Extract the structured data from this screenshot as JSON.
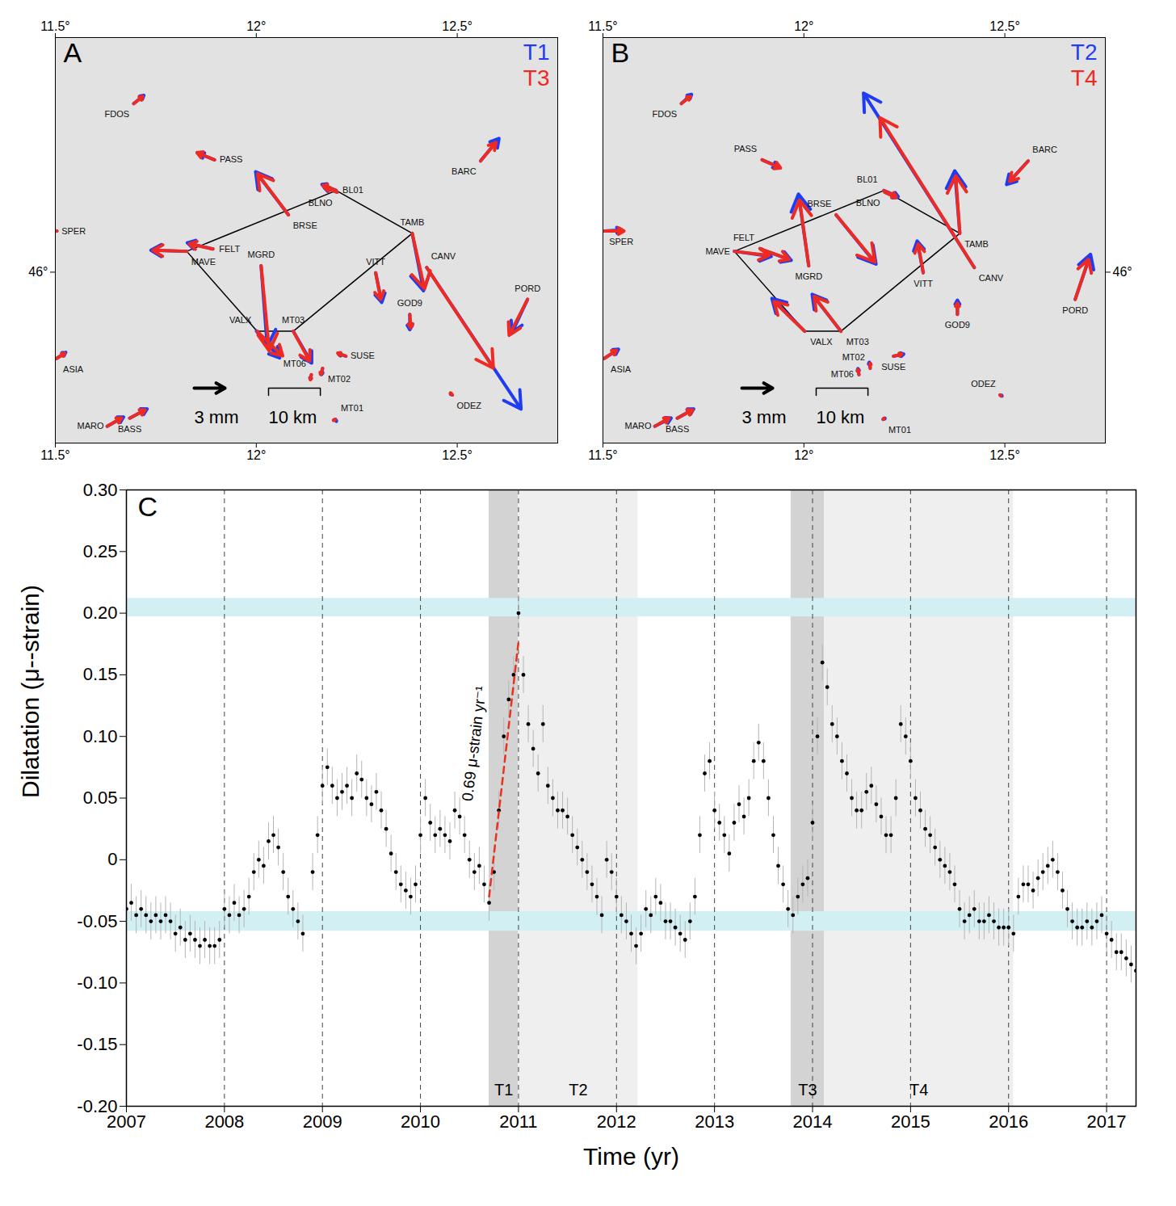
{
  "chart_data": [
    {
      "type": "map",
      "panel_label": "A",
      "legend": "top-right",
      "xlim": [
        11.5,
        12.75
      ],
      "ylim": [
        45.705,
        46.405
      ],
      "xticks": [
        {
          "value": 11.5,
          "label": "11.5°"
        },
        {
          "value": 12,
          "label": "12°"
        },
        {
          "value": 12.5,
          "label": "12.5°"
        }
      ],
      "yticks": [
        {
          "value": 46,
          "label": "46°"
        }
      ],
      "stations": [
        "FDOS",
        "PASS",
        "SPER",
        "BRSE",
        "BL01",
        "BLNO",
        "BARC",
        "MAVE",
        "FELT",
        "TAMB",
        "CANV",
        "VITT",
        "MGRD",
        "VALX",
        "MT03",
        "GOD9",
        "PORD",
        "SUSE",
        "MT06",
        "MT02",
        "MT01",
        "ODEZ",
        "ASIA",
        "BASS",
        "MARO"
      ],
      "lon": [
        11.695,
        11.896,
        11.504,
        12.08,
        12.199,
        12.201,
        12.558,
        11.827,
        11.892,
        12.388,
        12.424,
        12.297,
        12.012,
        12.002,
        12.092,
        12.382,
        12.675,
        12.223,
        12.137,
        12.165,
        12.197,
        12.488,
        11.503,
        11.685,
        11.629
      ],
      "lat": [
        46.291,
        46.194,
        46.071,
        46.099,
        46.141,
        46.138,
        46.192,
        46.036,
        46.04,
        46.067,
        46.008,
        45.999,
        46.011,
        45.898,
        45.898,
        45.927,
        45.953,
        45.855,
        45.823,
        45.834,
        45.746,
        45.788,
        45.851,
        45.748,
        45.734
      ],
      "network": [
        "MAVE",
        "BL01",
        "TAMB",
        "MT03",
        "VALX"
      ],
      "series": [
        {
          "name": "T1",
          "color": "#1f3cf2",
          "east": [
            1.0,
            -1.5,
            -0.2,
            -3.2,
            -1.4,
            -1.2,
            1.8,
            -3.5,
            -2.5,
            1.1,
            9.2,
            0.6,
            0.6,
            2.2,
            1.8,
            0.0,
            -1.5,
            -0.7,
            -0.1,
            -0.1,
            0.1,
            -0.2,
            0.9,
            1.7,
            1.6
          ],
          "north": [
            0.8,
            0.6,
            0.0,
            4.2,
            0.6,
            0.4,
            2.2,
            0.1,
            0.6,
            -5.6,
            -13.8,
            -2.9,
            -7.9,
            -2.6,
            -3.1,
            -1.5,
            -3.2,
            0.2,
            -0.4,
            -0.6,
            -0.2,
            0.1,
            0.6,
            0.9,
            0.9
          ]
        },
        {
          "name": "T3",
          "color": "#ee2a22",
          "east": [
            0.9,
            -1.7,
            -0.4,
            -3.0,
            -1.3,
            -1.1,
            1.5,
            -3.3,
            -2.3,
            1.2,
            6.5,
            0.5,
            0.8,
            2.5,
            1.6,
            0.1,
            -1.8,
            -0.8,
            -0.1,
            -0.2,
            -0.2,
            -0.2,
            0.8,
            1.5,
            1.4
          ],
          "north": [
            0.7,
            0.7,
            0.0,
            4.0,
            0.5,
            0.4,
            1.8,
            0.1,
            0.5,
            -5.4,
            -9.8,
            -2.6,
            -8.3,
            -2.4,
            -2.9,
            -1.3,
            -3.5,
            0.3,
            -0.5,
            -0.6,
            -0.1,
            0.2,
            0.5,
            0.8,
            0.8
          ]
        }
      ],
      "scale_arrow": {
        "value": 3,
        "label": "3 mm"
      },
      "scale_bar": {
        "value": 10,
        "label": "10 km"
      }
    },
    {
      "type": "map",
      "panel_label": "B",
      "legend": "top-right",
      "xlim": [
        11.5,
        12.75
      ],
      "ylim": [
        45.705,
        46.405
      ],
      "xticks": [
        {
          "value": 11.5,
          "label": "11.5°"
        },
        {
          "value": 12,
          "label": "12°"
        },
        {
          "value": 12.5,
          "label": "12.5°"
        }
      ],
      "yticks": [
        {
          "value": 46,
          "label": "46°"
        }
      ],
      "stations": [
        "FDOS",
        "PASS",
        "SPER",
        "BRSE",
        "BL01",
        "BLNO",
        "BARC",
        "MAVE",
        "FELT",
        "TAMB",
        "CANV",
        "VITT",
        "MGRD",
        "VALX",
        "MT03",
        "GOD9",
        "PORD",
        "SUSE",
        "MT06",
        "MT02",
        "MT01",
        "ODEZ",
        "ASIA",
        "BASS",
        "MARO"
      ],
      "lon": [
        11.695,
        11.896,
        11.504,
        12.08,
        12.199,
        12.201,
        12.558,
        11.827,
        11.892,
        12.388,
        12.424,
        12.297,
        12.012,
        12.002,
        12.092,
        12.382,
        12.675,
        12.223,
        12.137,
        12.165,
        12.197,
        12.488,
        11.503,
        11.685,
        11.629
      ],
      "lat": [
        46.291,
        46.194,
        46.071,
        46.099,
        46.141,
        46.138,
        46.192,
        46.036,
        46.04,
        46.067,
        46.008,
        45.999,
        46.011,
        45.898,
        45.898,
        45.927,
        45.953,
        45.855,
        45.823,
        45.834,
        45.746,
        45.788,
        45.851,
        45.748,
        45.734
      ],
      "network": [
        "MAVE",
        "BL01",
        "TAMB",
        "MT03",
        "VALX"
      ],
      "series": [
        {
          "name": "T2",
          "color": "#1f3cf2",
          "east": [
            1.0,
            1.6,
            1.7,
            3.9,
            1.4,
            1.2,
            -2.1,
            3.6,
            3.0,
            -0.5,
            -10.8,
            -0.6,
            -1.0,
            -3.2,
            -2.8,
            0.0,
            1.5,
            1.0,
            -0.1,
            -0.1,
            0.2,
            0.2,
            1.4,
            1.6,
            1.6
          ],
          "north": [
            0.9,
            -0.7,
            0.1,
            -4.8,
            -0.6,
            -0.5,
            -2.3,
            -0.5,
            -1.1,
            6.1,
            17.0,
            3.1,
            7.0,
            3.2,
            3.6,
            1.4,
            4.4,
            0.2,
            0.6,
            0.6,
            0.1,
            -0.1,
            0.9,
            0.9,
            0.8
          ]
        },
        {
          "name": "T4",
          "color": "#ee2a22",
          "east": [
            0.9,
            1.8,
            1.9,
            3.8,
            1.2,
            1.1,
            -1.8,
            3.4,
            2.8,
            -0.4,
            -9.2,
            -0.5,
            -0.9,
            -3.0,
            -2.6,
            0.0,
            1.3,
            0.8,
            -0.1,
            0.0,
            0.1,
            0.1,
            1.2,
            1.5,
            1.4
          ],
          "north": [
            0.7,
            -0.8,
            0.0,
            -4.6,
            -0.6,
            -0.5,
            -2.0,
            -0.4,
            -1.0,
            5.6,
            14.6,
            2.8,
            6.4,
            2.9,
            3.4,
            1.1,
            3.9,
            0.2,
            0.5,
            0.5,
            0.1,
            -0.1,
            0.8,
            0.8,
            0.8
          ]
        }
      ],
      "scale_arrow": {
        "value": 3,
        "label": "3 mm"
      },
      "scale_bar": {
        "value": 10,
        "label": "10 km"
      }
    },
    {
      "type": "scatter",
      "panel_label": "C",
      "grid": true,
      "line_style": "dashed",
      "x_label": "Time (yr)",
      "y_label": "Dilatation (μ--strain)",
      "xlim": [
        2007,
        2017.3
      ],
      "ylim": [
        -0.2,
        0.3
      ],
      "xticks": [
        2007,
        2008,
        2009,
        2010,
        2011,
        2012,
        2013,
        2014,
        2015,
        2016,
        2017
      ],
      "yticks": [
        {
          "value": 0.3,
          "label": "0.30"
        },
        0.25,
        {
          "value": 0.2,
          "label": "0.20"
        },
        0.15,
        {
          "value": 0.1,
          "label": "0.10"
        },
        0.05,
        0,
        -0.05,
        {
          "value": -0.1,
          "label": "-0.10"
        },
        -0.15,
        {
          "value": -0.2,
          "label": "-0.20"
        }
      ],
      "color": "#000000",
      "marker": "circle",
      "error": 0.015,
      "x": [
        2007,
        2007.05,
        2007.1,
        2007.15,
        2007.2,
        2007.25,
        2007.3,
        2007.35,
        2007.4,
        2007.45,
        2007.5,
        2007.55,
        2007.6,
        2007.65,
        2007.7,
        2007.75,
        2007.8,
        2007.85,
        2007.9,
        2007.95,
        2008,
        2008.05,
        2008.1,
        2008.15,
        2008.2,
        2008.25,
        2008.3,
        2008.35,
        2008.4,
        2008.45,
        2008.5,
        2008.55,
        2008.6,
        2008.65,
        2008.7,
        2008.75,
        2008.8,
        2008.85,
        2008.9,
        2008.95,
        2009,
        2009.05,
        2009.1,
        2009.15,
        2009.2,
        2009.25,
        2009.3,
        2009.35,
        2009.4,
        2009.45,
        2009.5,
        2009.55,
        2009.6,
        2009.65,
        2009.7,
        2009.75,
        2009.8,
        2009.85,
        2009.9,
        2009.95,
        2010,
        2010.05,
        2010.1,
        2010.15,
        2010.2,
        2010.25,
        2010.3,
        2010.35,
        2010.4,
        2010.45,
        2010.5,
        2010.55,
        2010.6,
        2010.65,
        2010.7,
        2010.75,
        2010.8,
        2010.85,
        2010.9,
        2010.95,
        2011,
        2011.05,
        2011.1,
        2011.15,
        2011.2,
        2011.25,
        2011.3,
        2011.35,
        2011.4,
        2011.45,
        2011.5,
        2011.55,
        2011.6,
        2011.65,
        2011.7,
        2011.75,
        2011.8,
        2011.85,
        2011.9,
        2011.95,
        2012,
        2012.05,
        2012.1,
        2012.15,
        2012.2,
        2012.25,
        2012.3,
        2012.35,
        2012.4,
        2012.45,
        2012.5,
        2012.55,
        2012.6,
        2012.65,
        2012.7,
        2012.75,
        2012.8,
        2012.85,
        2012.9,
        2012.95,
        2013,
        2013.05,
        2013.1,
        2013.15,
        2013.2,
        2013.25,
        2013.3,
        2013.35,
        2013.4,
        2013.45,
        2013.5,
        2013.55,
        2013.6,
        2013.65,
        2013.7,
        2013.75,
        2013.8,
        2013.85,
        2013.9,
        2013.95,
        2014,
        2014.05,
        2014.1,
        2014.15,
        2014.2,
        2014.25,
        2014.3,
        2014.35,
        2014.4,
        2014.45,
        2014.5,
        2014.55,
        2014.6,
        2014.65,
        2014.7,
        2014.75,
        2014.8,
        2014.85,
        2014.9,
        2014.95,
        2015,
        2015.05,
        2015.1,
        2015.15,
        2015.2,
        2015.25,
        2015.3,
        2015.35,
        2015.4,
        2015.45,
        2015.5,
        2015.55,
        2015.6,
        2015.65,
        2015.7,
        2015.75,
        2015.8,
        2015.85,
        2015.9,
        2015.95,
        2016,
        2016.05,
        2016.1,
        2016.15,
        2016.2,
        2016.25,
        2016.3,
        2016.35,
        2016.4,
        2016.45,
        2016.5,
        2016.55,
        2016.6,
        2016.65,
        2016.7,
        2016.75,
        2016.8,
        2016.85,
        2016.9,
        2016.95,
        2017,
        2017.05,
        2017.1,
        2017.15,
        2017.2,
        2017.25,
        2017.3
      ],
      "values": [
        -0.04,
        -0.035,
        -0.045,
        -0.04,
        -0.045,
        -0.05,
        -0.045,
        -0.05,
        -0.045,
        -0.05,
        -0.06,
        -0.055,
        -0.065,
        -0.06,
        -0.065,
        -0.07,
        -0.065,
        -0.07,
        -0.07,
        -0.065,
        -0.04,
        -0.045,
        -0.035,
        -0.045,
        -0.04,
        -0.03,
        -0.01,
        0.0,
        -0.005,
        0.015,
        0.02,
        0.01,
        -0.01,
        -0.03,
        -0.04,
        -0.05,
        -0.06,
        null,
        -0.01,
        0.02,
        0.06,
        0.075,
        0.06,
        0.05,
        0.055,
        0.06,
        0.05,
        0.07,
        0.065,
        0.05,
        0.045,
        0.055,
        0.04,
        0.025,
        0.005,
        -0.01,
        -0.02,
        -0.025,
        -0.03,
        -0.02,
        0.02,
        0.05,
        0.03,
        0.02,
        0.025,
        0.02,
        0.015,
        0.04,
        0.035,
        0.02,
        0.0,
        -0.01,
        -0.005,
        -0.02,
        -0.035,
        -0.01,
        0.04,
        0.1,
        0.13,
        0.15,
        0.2,
        0.15,
        0.11,
        0.09,
        0.07,
        0.11,
        0.06,
        0.05,
        0.04,
        0.04,
        0.035,
        0.02,
        0.01,
        0.0,
        -0.01,
        -0.02,
        -0.03,
        -0.045,
        0.0,
        -0.01,
        -0.03,
        -0.045,
        -0.05,
        -0.06,
        -0.07,
        -0.06,
        -0.04,
        -0.045,
        -0.03,
        -0.035,
        -0.05,
        -0.05,
        -0.055,
        -0.06,
        -0.065,
        -0.05,
        -0.03,
        0.02,
        0.07,
        0.08,
        0.04,
        0.03,
        0.02,
        0.005,
        0.03,
        0.045,
        0.035,
        0.05,
        0.08,
        0.095,
        0.08,
        0.05,
        0.02,
        -0.005,
        -0.02,
        -0.04,
        -0.045,
        -0.03,
        -0.02,
        -0.015,
        0.03,
        0.1,
        0.16,
        0.14,
        0.11,
        0.1,
        0.08,
        0.07,
        0.05,
        0.04,
        0.04,
        0.055,
        0.06,
        0.045,
        0.035,
        0.02,
        0.02,
        0.05,
        0.11,
        0.1,
        0.08,
        0.05,
        0.04,
        0.025,
        0.02,
        0.01,
        0.0,
        -0.005,
        -0.01,
        -0.02,
        -0.04,
        -0.05,
        -0.045,
        -0.04,
        -0.05,
        -0.05,
        -0.045,
        -0.05,
        -0.055,
        -0.055,
        -0.055,
        -0.06,
        -0.03,
        -0.02,
        -0.02,
        -0.025,
        -0.015,
        -0.01,
        -0.005,
        0.0,
        -0.01,
        -0.025,
        -0.04,
        -0.05,
        -0.055,
        -0.055,
        -0.05,
        -0.055,
        -0.05,
        -0.045,
        -0.06,
        -0.065,
        -0.075,
        -0.075,
        -0.08,
        -0.085,
        -0.09
      ],
      "periods": [
        {
          "name": "T1",
          "start": 2010.7,
          "end": 2011.0,
          "color": "#d3d3d3"
        },
        {
          "name": "T2",
          "start": 2011.0,
          "end": 2012.22,
          "color": "#efefef"
        },
        {
          "name": "T3",
          "start": 2013.78,
          "end": 2014.12,
          "color": "#d3d3d3"
        },
        {
          "name": "T4",
          "start": 2014.12,
          "end": 2016.05,
          "color": "#efefef"
        }
      ],
      "bands": [
        {
          "start": 0.197,
          "end": 0.212,
          "color": "#d2f0f3"
        },
        {
          "start": -0.058,
          "end": -0.042,
          "color": "#d2f0f3"
        }
      ],
      "trend": {
        "x": [
          2010.7,
          2011.0
        ],
        "values": [
          -0.03,
          0.177
        ],
        "color": "#e8321e",
        "line_style": "dashed",
        "label": "0.69 μ-strain yr⁻¹"
      }
    }
  ]
}
